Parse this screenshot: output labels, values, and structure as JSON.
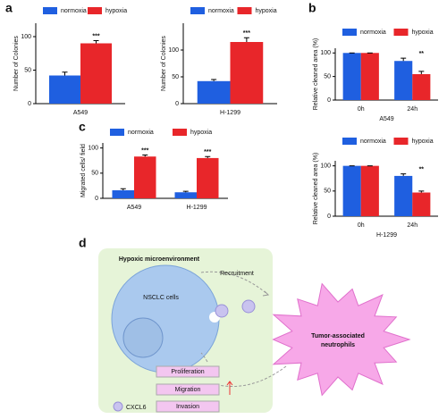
{
  "panel_labels": [
    "a",
    "b",
    "c",
    "d"
  ],
  "chart_data": [
    {
      "type": "bar",
      "ylabel": "Number of Colonies",
      "categories": [
        "A549"
      ],
      "ylim": [
        0,
        120
      ],
      "yticks": [
        0,
        50,
        100
      ],
      "series": [
        {
          "name": "normoxia",
          "color": "#1f5fe0",
          "values": [
            42
          ],
          "errors": [
            5
          ]
        },
        {
          "name": "hypoxia",
          "color": "#e8262a",
          "values": [
            90
          ],
          "errors": [
            4
          ]
        }
      ],
      "annotations": [
        "***"
      ]
    },
    {
      "type": "bar",
      "ylabel": "Number of Colonies",
      "categories": [
        "H-1299"
      ],
      "ylim": [
        0,
        150
      ],
      "yticks": [
        0,
        50,
        100
      ],
      "series": [
        {
          "name": "normoxia",
          "color": "#1f5fe0",
          "values": [
            42
          ],
          "errors": [
            3
          ]
        },
        {
          "name": "hypoxia",
          "color": "#e8262a",
          "values": [
            115
          ],
          "errors": [
            8
          ]
        }
      ],
      "annotations": [
        "***"
      ]
    },
    {
      "type": "bar",
      "ylabel": "Relative cleaned area (%)",
      "xlabel": "A549",
      "categories": [
        "0h",
        "24h"
      ],
      "ylim": [
        0,
        110
      ],
      "yticks": [
        0,
        50,
        100
      ],
      "series": [
        {
          "name": "normoxia",
          "color": "#1f5fe0",
          "values": [
            100,
            83
          ],
          "errors": [
            0,
            6
          ]
        },
        {
          "name": "hypoxia",
          "color": "#e8262a",
          "values": [
            100,
            55
          ],
          "errors": [
            0,
            6
          ]
        }
      ],
      "annotations": [
        null,
        "**"
      ]
    },
    {
      "type": "bar",
      "ylabel": "Relative cleaned area (%)",
      "xlabel": "H-1299",
      "categories": [
        "0h",
        "24h"
      ],
      "ylim": [
        0,
        110
      ],
      "yticks": [
        0,
        50,
        100
      ],
      "series": [
        {
          "name": "normoxia",
          "color": "#1f5fe0",
          "values": [
            100,
            80
          ],
          "errors": [
            0,
            4
          ]
        },
        {
          "name": "hypoxia",
          "color": "#e8262a",
          "values": [
            100,
            47
          ],
          "errors": [
            0,
            3
          ]
        }
      ],
      "annotations": [
        null,
        "**"
      ]
    },
    {
      "type": "bar",
      "ylabel": "Migrated cells/ field",
      "categories": [
        "A549",
        "H-1299"
      ],
      "ylim": [
        0,
        110
      ],
      "yticks": [
        0,
        50,
        100
      ],
      "series": [
        {
          "name": "normoxia",
          "color": "#1f5fe0",
          "values": [
            16,
            12
          ],
          "errors": [
            3,
            2
          ]
        },
        {
          "name": "hypoxia",
          "color": "#e8262a",
          "values": [
            83,
            80
          ],
          "errors": [
            3,
            3
          ]
        }
      ],
      "annotations": [
        "***",
        "***"
      ]
    }
  ],
  "diagram": {
    "title": "Hypoxic microenvironment",
    "cell": "NSCLC  cells",
    "recruitment": "Recruitment",
    "neutrophils": [
      "Tumor-associated",
      "neutrophils"
    ],
    "processes": [
      "Proliferation",
      "Migration",
      "Invasion"
    ],
    "cytokine": "CXCL6"
  }
}
